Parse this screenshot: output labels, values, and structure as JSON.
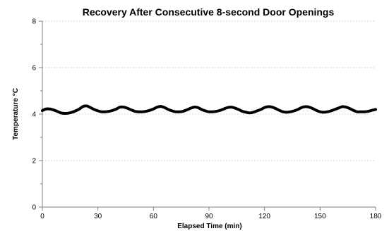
{
  "chart_data": {
    "type": "line",
    "title": "Recovery After Consecutive 8-second Door Openings",
    "xlabel": "Elapsed Time (min)",
    "ylabel": "Temperature °C",
    "xlim": [
      0,
      180
    ],
    "ylim": [
      0,
      8
    ],
    "xticks": [
      0,
      30,
      60,
      90,
      120,
      150,
      180
    ],
    "yticks": [
      0,
      2,
      4,
      6,
      8
    ],
    "grid": "horizontal",
    "series": [
      {
        "color": "#000000",
        "x": [
          0,
          2,
          4,
          6,
          8,
          10,
          12,
          14,
          16,
          18,
          20,
          22,
          24,
          26,
          28,
          30,
          32,
          34,
          36,
          38,
          40,
          42,
          44,
          46,
          48,
          50,
          52,
          54,
          56,
          58,
          60,
          62,
          64,
          66,
          68,
          70,
          72,
          74,
          76,
          78,
          80,
          82,
          84,
          86,
          88,
          90,
          92,
          94,
          96,
          98,
          100,
          102,
          104,
          106,
          108,
          110,
          112,
          114,
          116,
          118,
          120,
          122,
          124,
          126,
          128,
          130,
          132,
          134,
          136,
          138,
          140,
          142,
          144,
          146,
          148,
          150,
          152,
          154,
          156,
          158,
          160,
          162,
          164,
          166,
          168,
          170,
          172,
          174,
          176,
          178,
          180
        ],
        "y": [
          4.15,
          4.22,
          4.22,
          4.18,
          4.12,
          4.05,
          4.03,
          4.04,
          4.08,
          4.14,
          4.22,
          4.33,
          4.35,
          4.28,
          4.2,
          4.14,
          4.1,
          4.1,
          4.12,
          4.16,
          4.22,
          4.3,
          4.3,
          4.25,
          4.18,
          4.12,
          4.1,
          4.1,
          4.12,
          4.16,
          4.22,
          4.3,
          4.33,
          4.28,
          4.2,
          4.14,
          4.1,
          4.1,
          4.12,
          4.18,
          4.25,
          4.3,
          4.28,
          4.2,
          4.14,
          4.1,
          4.1,
          4.12,
          4.16,
          4.22,
          4.28,
          4.3,
          4.26,
          4.2,
          4.12,
          4.08,
          4.05,
          4.08,
          4.14,
          4.2,
          4.28,
          4.32,
          4.3,
          4.24,
          4.16,
          4.1,
          4.08,
          4.1,
          4.14,
          4.2,
          4.28,
          4.32,
          4.3,
          4.24,
          4.16,
          4.1,
          4.08,
          4.1,
          4.14,
          4.2,
          4.26,
          4.32,
          4.3,
          4.24,
          4.16,
          4.1,
          4.1,
          4.1,
          4.12,
          4.16,
          4.2
        ]
      }
    ]
  }
}
